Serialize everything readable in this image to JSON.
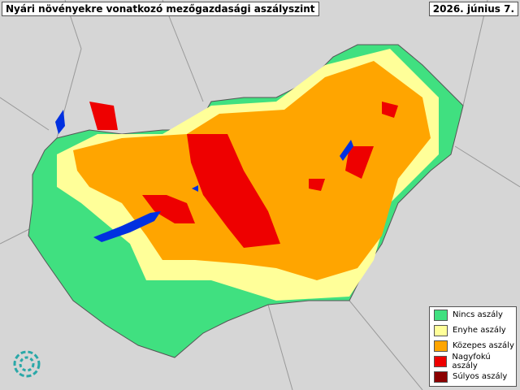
{
  "header": {
    "title": "Nyári növényekre vonatkozó mezőgazdasági aszályszint",
    "date": "2026. június 7."
  },
  "legend": {
    "items": [
      {
        "label": "Nincs aszály",
        "color": "#40e080"
      },
      {
        "label": "Enyhe aszály",
        "color": "#ffff99"
      },
      {
        "label": "Közepes aszály",
        "color": "#ffa500"
      },
      {
        "label": "Nagyfokú aszály",
        "color": "#ee0000"
      },
      {
        "label": "Súlyos aszály",
        "color": "#8b0000"
      }
    ]
  }
}
